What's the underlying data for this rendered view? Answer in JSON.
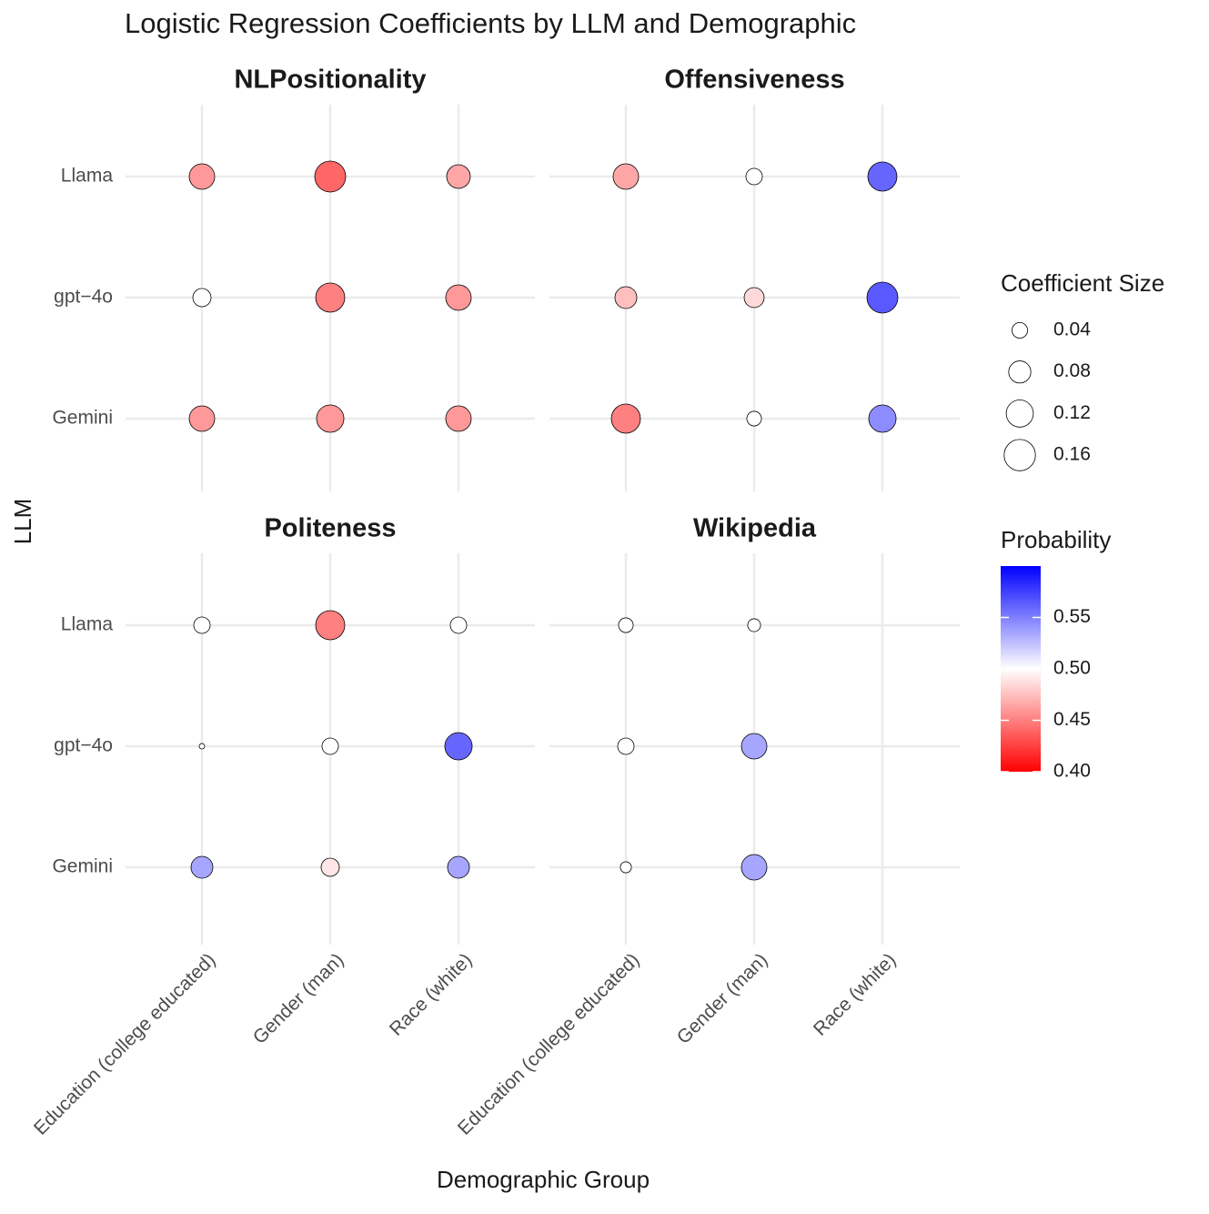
{
  "chart_data": {
    "type": "bubble-facet",
    "title": "Logistic Regression Coefficients by LLM and Demographic",
    "x_label": "Demographic Group",
    "y_label": "LLM",
    "x_categories": [
      "Education (college educated)",
      "Gender (man)",
      "Race (white)"
    ],
    "y_categories": [
      "Llama",
      "gpt−4o",
      "Gemini"
    ],
    "panels": [
      {
        "title": "NLPositionality",
        "size": [
          [
            0.106,
            0.156,
            0.091
          ],
          [
            0.054,
            0.138,
            0.106
          ],
          [
            0.106,
            0.122,
            0.106
          ]
        ],
        "probability": [
          [
            0.46,
            0.44,
            0.465
          ],
          [
            0.5,
            0.45,
            0.46
          ],
          [
            0.46,
            0.46,
            0.46
          ]
        ]
      },
      {
        "title": "Offensiveness",
        "size": [
          [
            0.106,
            0.044,
            0.138
          ],
          [
            0.078,
            0.065,
            0.156
          ],
          [
            0.138,
            0.035,
            0.122
          ]
        ],
        "probability": [
          [
            0.465,
            0.5,
            0.56
          ],
          [
            0.475,
            0.485,
            0.565
          ],
          [
            0.45,
            0.5,
            0.545
          ]
        ]
      },
      {
        "title": "Politeness",
        "size": [
          [
            0.044,
            0.138,
            0.044
          ],
          [
            0.005,
            0.044,
            0.122
          ],
          [
            0.078,
            0.054,
            0.078
          ]
        ],
        "probability": [
          [
            0.5,
            0.45,
            0.5
          ],
          [
            0.5,
            0.5,
            0.56
          ],
          [
            0.535,
            0.49,
            0.535
          ]
        ]
      },
      {
        "title": "Wikipedia",
        "size": [
          [
            0.035,
            0.027,
            null
          ],
          [
            0.044,
            0.106,
            null
          ],
          [
            0.02,
            0.106,
            null
          ]
        ],
        "probability": [
          [
            0.5,
            0.5,
            null
          ],
          [
            0.5,
            0.535,
            null
          ],
          [
            0.5,
            0.535,
            null
          ]
        ]
      }
    ],
    "size_legend": {
      "title": "Coefficient Size",
      "values": [
        0.04,
        0.08,
        0.12,
        0.16
      ]
    },
    "color_legend": {
      "title": "Probability",
      "lim": [
        0.4,
        0.6
      ],
      "ticks": [
        {
          "value": 0.4,
          "label": "0.40"
        },
        0.45,
        {
          "value": 0.5,
          "label": "0.50"
        },
        0.55
      ],
      "color_low": "#ff0000",
      "color_mid": "#ffffff",
      "color_high": "#0000ff"
    },
    "grid": true
  }
}
